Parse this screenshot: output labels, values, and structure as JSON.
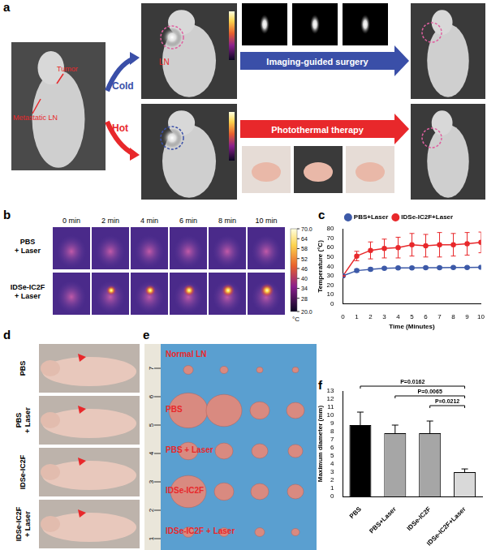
{
  "figure": {
    "panel_labels": [
      "a",
      "b",
      "c",
      "d",
      "e",
      "f"
    ],
    "a": {
      "tumor": "Tumor",
      "metastatic": "Metastatic LN",
      "ln": "LN",
      "cold": "Cold",
      "hot": "Hot",
      "surgery": "Imaging-guided surgery",
      "therapy": "Photothermal therapy"
    },
    "b": {
      "rows": [
        "PBS + Laser",
        "IDSe-IC2F + Laser"
      ],
      "times": [
        "0 min",
        "2 min",
        "4 min",
        "6 min",
        "8 min",
        "10 min"
      ],
      "colorbar": {
        "range": [
          20,
          70
        ],
        "ticks": [
          {
            "value": 70,
            "label": "70.0"
          },
          64,
          58,
          52,
          46,
          40,
          34,
          28,
          {
            "value": 20,
            "label": "20.0"
          }
        ],
        "unit": "°C"
      }
    },
    "d": {
      "rows": [
        "PBS",
        "PBS + Laser",
        "IDSe-IC2F",
        "IDSe-IC2F + Laser"
      ]
    },
    "e": {
      "rows": [
        "Normal LN",
        "PBS",
        "PBS + Laser",
        "IDSe-IC2F",
        "IDSe-IC2F + Laser"
      ],
      "ruler": [
        1,
        2,
        3,
        4,
        5,
        6,
        7
      ]
    }
  },
  "chart_data": [
    {
      "type": "line",
      "x_label": "Time (Minutes)",
      "y_label": "Temperature (°C)",
      "x": [
        0,
        1,
        2,
        3,
        4,
        5,
        6,
        7,
        8,
        9,
        10
      ],
      "xlim": [
        0,
        10
      ],
      "xticks": [
        0,
        1,
        2,
        3,
        4,
        5,
        6,
        7,
        8,
        9,
        10
      ],
      "ylim": [
        0,
        80
      ],
      "yticks": [
        0,
        10,
        20,
        30,
        40,
        50,
        60,
        70,
        80
      ],
      "legend": "top",
      "marker": "circle",
      "series": [
        {
          "name": "PBS+Laser",
          "color": "#3d5aa8",
          "values": [
            30,
            35.5,
            37,
            38,
            38.3,
            38.5,
            38.6,
            38.7,
            38.8,
            38.9,
            39
          ],
          "errors": [
            0.5,
            1.5,
            1.5,
            1,
            1,
            1,
            1,
            1,
            1,
            1,
            1
          ]
        },
        {
          "name": "IDSe-IC2F+Laser",
          "color": "#e8282b",
          "values": [
            30,
            51,
            57,
            59,
            60,
            63,
            62,
            63,
            63,
            64,
            65.5
          ],
          "errors": [
            0.5,
            5,
            9,
            10,
            11,
            12,
            12,
            13,
            12,
            12,
            11
          ]
        }
      ]
    },
    {
      "type": "bar",
      "y_label": "Maximum diameter (mm)",
      "categories": [
        "PBS",
        "PBS+Laser",
        "IDSe-IC2F",
        "IDSe-IC2F+Laser"
      ],
      "values": [
        8.8,
        7.8,
        7.8,
        3.0
      ],
      "errors": [
        1.6,
        1.0,
        1.5,
        0.4
      ],
      "colors": [
        "#000000",
        "#a6a6a6",
        "#a6a6a6",
        "#d9d9d9"
      ],
      "ylim": [
        0,
        13
      ],
      "yticks": [
        0,
        1,
        2,
        3,
        4,
        5,
        6,
        7,
        8,
        9,
        10,
        11,
        12,
        13
      ],
      "comparisons": [
        {
          "from": "PBS",
          "to": "IDSe-IC2F+Laser",
          "label": "P=0.0162"
        },
        {
          "from": "PBS+Laser",
          "to": "IDSe-IC2F+Laser",
          "label": "P=0.0065"
        },
        {
          "from": "IDSe-IC2F",
          "to": "IDSe-IC2F+Laser",
          "label": "P=0.0212"
        }
      ]
    }
  ]
}
